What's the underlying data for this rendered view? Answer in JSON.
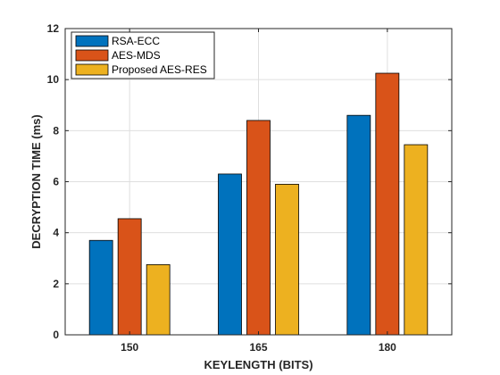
{
  "chart_data": {
    "type": "bar",
    "categories": [
      "150",
      "165",
      "180"
    ],
    "series": [
      {
        "name": "RSA-ECC",
        "values": [
          3.7,
          6.3,
          8.6
        ],
        "color": "#0072BD"
      },
      {
        "name": "AES-MDS",
        "values": [
          4.55,
          8.4,
          10.25
        ],
        "color": "#D95319"
      },
      {
        "name": "Proposed AES-RES",
        "values": [
          2.75,
          5.9,
          7.45
        ],
        "color": "#EDB120"
      }
    ],
    "xlabel": "KEYLENGTH (BITS)",
    "ylabel": "DECRYPTION TIME (ms)",
    "ylim": [
      0,
      12
    ],
    "yticks": [
      0,
      2,
      4,
      6,
      8,
      10,
      12
    ],
    "grid": true,
    "legend_position": "top-left"
  }
}
